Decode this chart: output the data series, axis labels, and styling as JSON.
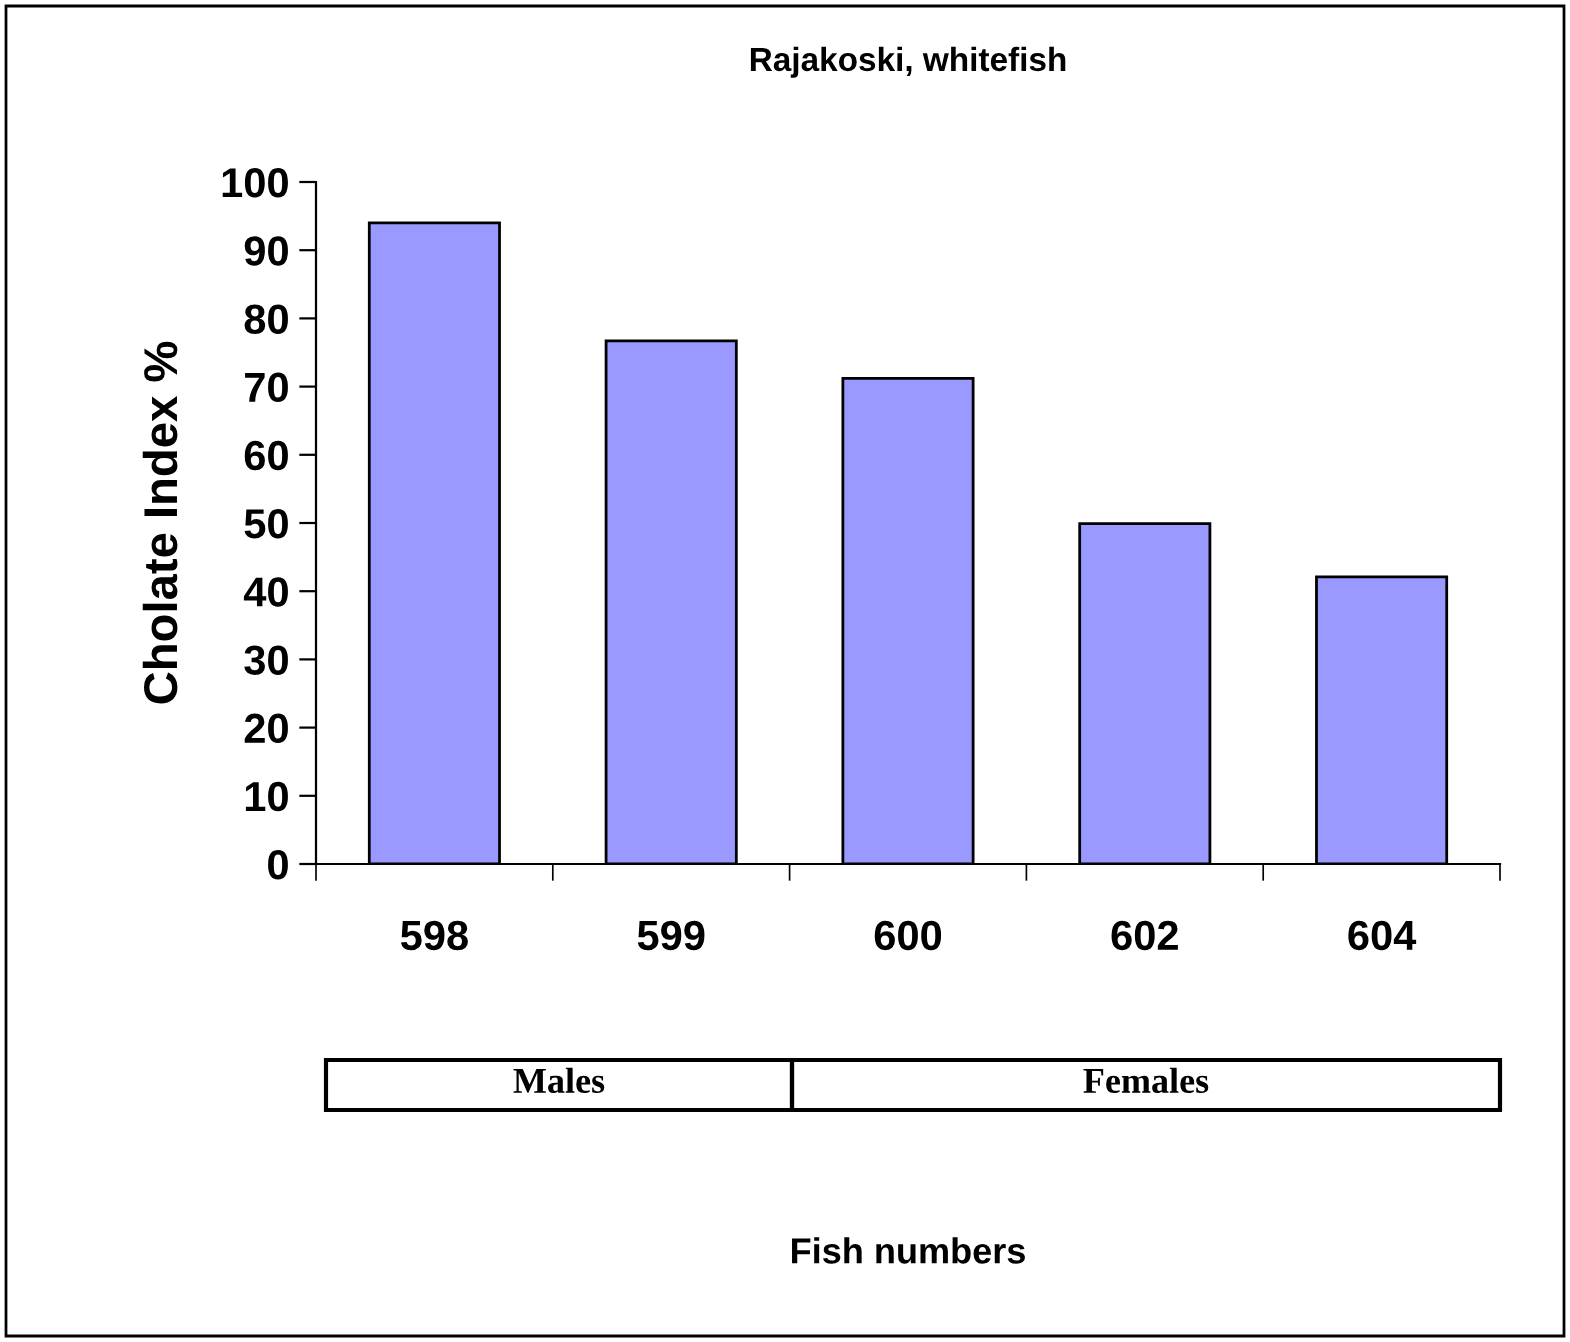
{
  "chart_data": {
    "type": "bar",
    "title": "Rajakoski, whitefish",
    "ylabel": "Cholate Index %",
    "categories": [
      "598",
      "599",
      "600",
      "602",
      "604"
    ],
    "values": [
      94.0,
      76.7,
      71.2,
      49.9,
      42.1
    ],
    "color": "#9999ff",
    "ylim": [
      0,
      100
    ],
    "yticks": [
      0,
      10,
      20,
      30,
      40,
      50,
      60,
      70,
      80,
      90,
      100
    ],
    "grid": false,
    "legend": false,
    "annotations": [
      "Males",
      "Females",
      "Fish numbers"
    ]
  }
}
